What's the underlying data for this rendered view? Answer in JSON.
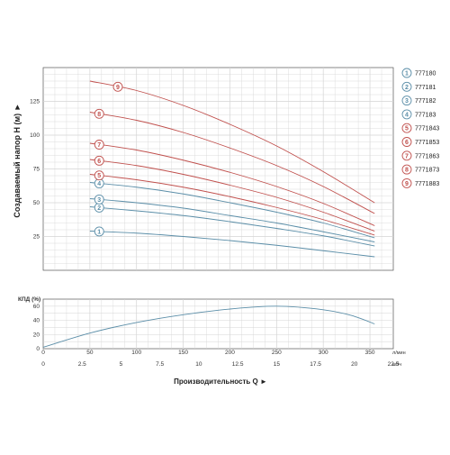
{
  "chart_data": [
    {
      "type": "line",
      "title": "",
      "xlabel": "",
      "ylabel": "Создаваемый напор H (м) ►",
      "xlim": [
        50,
        375
      ],
      "ylim": [
        0,
        150
      ],
      "x_ticks": [
        50,
        100,
        150,
        200,
        250,
        300,
        350
      ],
      "y_ticks": [
        25,
        50,
        75,
        100,
        125
      ],
      "grid": true,
      "legend": "right",
      "series": [
        {
          "name": "777180",
          "marker": "1",
          "color": "#5b8ea8",
          "x": [
            50,
            100,
            150,
            200,
            250,
            300,
            355
          ],
          "y": [
            29,
            27.5,
            25,
            22,
            18.5,
            14.5,
            10
          ]
        },
        {
          "name": "777181",
          "marker": "2",
          "color": "#5b8ea8",
          "x": [
            50,
            100,
            150,
            200,
            250,
            300,
            355
          ],
          "y": [
            47,
            44,
            40.5,
            36,
            31,
            25.5,
            18
          ]
        },
        {
          "name": "777182",
          "marker": "3",
          "color": "#5b8ea8",
          "x": [
            50,
            100,
            150,
            200,
            250,
            300,
            355
          ],
          "y": [
            53,
            50,
            46,
            40.5,
            35,
            28.5,
            21
          ]
        },
        {
          "name": "777183",
          "marker": "4",
          "color": "#5b8ea8",
          "x": [
            50,
            100,
            150,
            200,
            250,
            300,
            355
          ],
          "y": [
            65,
            61.5,
            56.5,
            50,
            43,
            35,
            24
          ]
        },
        {
          "name": "7771843",
          "marker": "5",
          "color": "#c0504d",
          "x": [
            50,
            100,
            150,
            200,
            250,
            300,
            355
          ],
          "y": [
            71,
            67,
            61.5,
            54.5,
            46.5,
            37.5,
            26
          ]
        },
        {
          "name": "7771853",
          "marker": "6",
          "color": "#c0504d",
          "x": [
            50,
            100,
            150,
            200,
            250,
            300,
            355
          ],
          "y": [
            82,
            77.5,
            71,
            63,
            54,
            43,
            29
          ]
        },
        {
          "name": "7771863",
          "marker": "7",
          "color": "#c0504d",
          "x": [
            50,
            100,
            150,
            200,
            250,
            300,
            355
          ],
          "y": [
            94,
            89,
            81.5,
            72.5,
            62,
            49.5,
            33
          ]
        },
        {
          "name": "7771873",
          "marker": "8",
          "color": "#c0504d",
          "x": [
            50,
            100,
            150,
            200,
            250,
            300,
            355
          ],
          "y": [
            117,
            111,
            102,
            90.5,
            77.5,
            62,
            42
          ]
        },
        {
          "name": "7771883",
          "marker": "9",
          "color": "#c0504d",
          "x": [
            50,
            100,
            150,
            200,
            250,
            300,
            355
          ],
          "y": [
            140,
            133,
            122,
            108,
            92,
            73,
            50
          ]
        }
      ]
    },
    {
      "type": "line",
      "title": "",
      "xlabel": "Производительность Q ►",
      "ylabel": "КПД (%)",
      "x_unit_primary": "л/мин",
      "x_unit_secondary": "м³/ч",
      "xlim": [
        0,
        375
      ],
      "ylim": [
        0,
        70
      ],
      "x_ticks": [
        0,
        50,
        100,
        150,
        200,
        250,
        300,
        350
      ],
      "x_ticks_secondary_values": [
        0,
        2.5,
        5,
        7.5,
        10,
        12.5,
        15,
        17.5,
        20,
        22.5
      ],
      "x_ticks_secondary": [
        "0",
        "2.5",
        "5",
        "7.5",
        "10",
        "12.5",
        "15",
        "17.5",
        "20",
        "22.5"
      ],
      "y_ticks": [
        0,
        20,
        40,
        60
      ],
      "grid": true,
      "series": [
        {
          "name": "",
          "color": "#5b8ea8",
          "x": [
            0,
            50,
            100,
            150,
            200,
            250,
            300,
            330,
            355
          ],
          "y": [
            2,
            22,
            37,
            48,
            56,
            60,
            55,
            47,
            35
          ]
        }
      ]
    }
  ],
  "colors": {
    "grid": "#d4d4d4",
    "axis": "#555555",
    "blue": "#5b8ea8",
    "red": "#c0504d"
  }
}
